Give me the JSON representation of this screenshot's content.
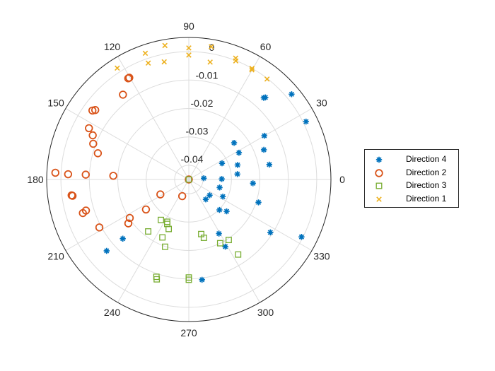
{
  "chart_data": {
    "type": "scatter",
    "coordinate_system": "polar",
    "angle_unit": "degrees",
    "theta_ticks": [
      "0",
      "30",
      "60",
      "90",
      "120",
      "150",
      "180",
      "210",
      "240",
      "270",
      "300",
      "330"
    ],
    "r_ticks": [
      "-0.04",
      "-0.03",
      "-0.02",
      "-0.01",
      "0"
    ],
    "rlim": [
      -0.045,
      0.005
    ],
    "grid": true,
    "legend_position": "right",
    "colors": {
      "Direction 4": "#0072BD",
      "Direction 2": "#D95319",
      "Direction 3": "#77AC30",
      "Direction 1": "#EDB120"
    },
    "series": [
      {
        "name": "Direction 4",
        "marker": "asterisk",
        "points": [
          {
            "theta": 39.7,
            "r": 0.002
          },
          {
            "theta": 47.0,
            "r": -0.0055
          },
          {
            "theta": 47.5,
            "r": -0.006
          },
          {
            "theta": 26.3,
            "r": 0.001
          },
          {
            "theta": 30.1,
            "r": -0.0143
          },
          {
            "theta": 21.6,
            "r": -0.0166
          },
          {
            "theta": 10.5,
            "r": -0.0162
          },
          {
            "theta": 6.4,
            "r": -0.0278
          },
          {
            "theta": 356.6,
            "r": -0.0224
          },
          {
            "theta": 0.9,
            "r": -0.0334
          },
          {
            "theta": 39.0,
            "r": -0.0245
          },
          {
            "theta": 28.1,
            "r": -0.025
          },
          {
            "theta": 16.6,
            "r": -0.0271
          },
          {
            "theta": 26.0,
            "r": -0.032
          },
          {
            "theta": 341.8,
            "r": -0.0192
          },
          {
            "theta": 327.0,
            "r": -0.0108
          },
          {
            "theta": 333.0,
            "r": -0.0005
          },
          {
            "theta": 319.9,
            "r": -0.0276
          },
          {
            "theta": 315.2,
            "r": -0.0298
          },
          {
            "theta": 333.3,
            "r": -0.0316
          },
          {
            "theta": 322.9,
            "r": -0.0358
          },
          {
            "theta": 310.5,
            "r": -0.0358
          },
          {
            "theta": 345.4,
            "r": -0.0338
          },
          {
            "theta": 4.9,
            "r": -0.0397
          },
          {
            "theta": 298.5,
            "r": -0.0181
          },
          {
            "theta": 299.1,
            "r": -0.0232
          },
          {
            "theta": 277.5,
            "r": -0.0094
          },
          {
            "theta": 221.9,
            "r": -0.0138
          },
          {
            "theta": 221.0,
            "r": -0.0067
          }
        ]
      },
      {
        "name": "Direction 2",
        "marker": "circle",
        "points": [
          {
            "theta": 120.3,
            "r": -0.0035
          },
          {
            "theta": 120.9,
            "r": -0.0035
          },
          {
            "theta": 127.8,
            "r": -0.0072
          },
          {
            "theta": 144.4,
            "r": -0.0033
          },
          {
            "theta": 143.4,
            "r": -0.004
          },
          {
            "theta": 152.8,
            "r": -0.0055
          },
          {
            "theta": 155.3,
            "r": -0.0078
          },
          {
            "theta": 159.5,
            "r": -0.0091
          },
          {
            "theta": 163.9,
            "r": -0.0117
          },
          {
            "theta": 177.1,
            "r": 0.002
          },
          {
            "theta": 177.5,
            "r": -0.0025
          },
          {
            "theta": 177.3,
            "r": -0.0087
          },
          {
            "theta": 177.2,
            "r": -0.0184
          },
          {
            "theta": 187.7,
            "r": -0.0034
          },
          {
            "theta": 188.0,
            "r": -0.0037
          },
          {
            "theta": 197.6,
            "r": -0.0059
          },
          {
            "theta": 196.8,
            "r": -0.0072
          },
          {
            "theta": 208.2,
            "r": -0.0093
          },
          {
            "theta": 216.0,
            "r": -0.0187
          },
          {
            "theta": 213.1,
            "r": -0.0202
          },
          {
            "theta": 215.0,
            "r": -0.0266
          },
          {
            "theta": 207.7,
            "r": -0.0337
          },
          {
            "theta": 248.4,
            "r": -0.0387
          },
          {
            "theta": 180.0,
            "r": -0.045
          }
        ]
      },
      {
        "name": "Direction 3",
        "marker": "square",
        "points": [
          {
            "theta": 232.0,
            "r": -0.0218
          },
          {
            "theta": 235.4,
            "r": -0.0277
          },
          {
            "theta": 244.1,
            "r": -0.0276
          },
          {
            "theta": 247.9,
            "r": -0.0262
          },
          {
            "theta": 245.5,
            "r": -0.0226
          },
          {
            "theta": 243.0,
            "r": -0.0283
          },
          {
            "theta": 250.6,
            "r": -0.0199
          },
          {
            "theta": 251.6,
            "r": -0.0089
          },
          {
            "theta": 252.2,
            "r": -0.0081
          },
          {
            "theta": 284.5,
            "r": -0.0238
          },
          {
            "theta": 282.8,
            "r": -0.0253
          },
          {
            "theta": 296.2,
            "r": -0.02
          },
          {
            "theta": 303.4,
            "r": -0.0195
          },
          {
            "theta": 303.3,
            "r": -0.0134
          },
          {
            "theta": 270.0,
            "r": -0.0105
          },
          {
            "theta": 270.0,
            "r": -0.0097
          },
          {
            "theta": 270.0,
            "r": -0.045
          }
        ]
      },
      {
        "name": "Direction 1",
        "marker": "x",
        "points": [
          {
            "theta": 122.7,
            "r": 0.0016
          },
          {
            "theta": 109.0,
            "r": 0.002
          },
          {
            "theta": 109.2,
            "r": -0.0016
          },
          {
            "theta": 100.1,
            "r": 0.0029
          },
          {
            "theta": 101.8,
            "r": -0.0027
          },
          {
            "theta": 90.0,
            "r": 0.0013
          },
          {
            "theta": 90.0,
            "r": -0.0012
          },
          {
            "theta": 80.4,
            "r": 0.0024
          },
          {
            "theta": 79.7,
            "r": -0.003
          },
          {
            "theta": 68.9,
            "r": 0.0008
          },
          {
            "theta": 68.4,
            "r": -0.0001
          },
          {
            "theta": 60.1,
            "r": -0.0005
          },
          {
            "theta": 60.4,
            "r": 0.0
          },
          {
            "theta": 52.1,
            "r": -0.0002
          }
        ]
      }
    ]
  }
}
